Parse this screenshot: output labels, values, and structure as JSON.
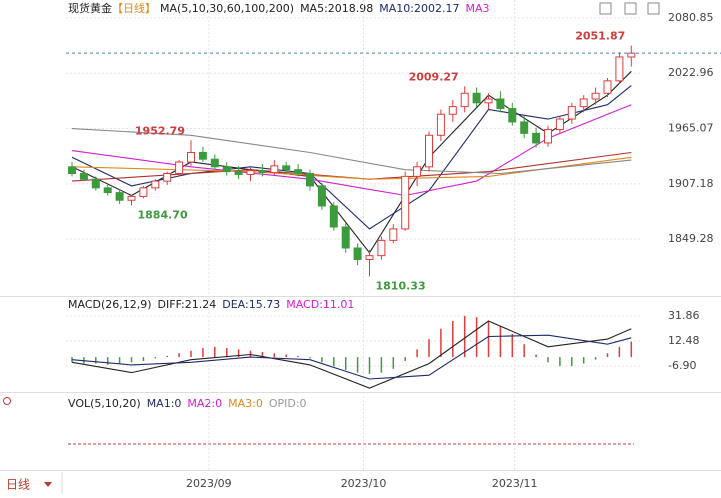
{
  "chart_data": {
    "type": "candlestick",
    "title": "现货黄金",
    "subtitle": "【日线】",
    "legend": [
      {
        "text": "MA(5,10,30,60,100,200)",
        "color": "#222222"
      },
      {
        "text": "MA5:2018.98",
        "color": "#222222"
      },
      {
        "text": "MA10:2002.17",
        "color": "#1f2a6b"
      },
      {
        "text": "MA3",
        "color": "#d21ed2"
      }
    ],
    "ylim": [
      1790.8,
      2094.4
    ],
    "yticks": [
      2080.85,
      2022.96,
      1965.07,
      1907.18,
      1849.28
    ],
    "up_color": "#e03c3c",
    "down_color": "#3d9b3d",
    "candles": [
      [
        1925,
        1930,
        1915,
        1918
      ],
      [
        1918,
        1922,
        1910,
        1912
      ],
      [
        1912,
        1915,
        1900,
        1903
      ],
      [
        1903,
        1908,
        1895,
        1898
      ],
      [
        1898,
        1902,
        1886,
        1890
      ],
      [
        1890,
        1896,
        1884.7,
        1894
      ],
      [
        1894,
        1905,
        1892,
        1903
      ],
      [
        1903,
        1912,
        1900,
        1910
      ],
      [
        1910,
        1920,
        1906,
        1918
      ],
      [
        1918,
        1932,
        1915,
        1930
      ],
      [
        1930,
        1952.79,
        1926,
        1940
      ],
      [
        1940,
        1946,
        1930,
        1933
      ],
      [
        1933,
        1938,
        1922,
        1925
      ],
      [
        1925,
        1930,
        1916,
        1920
      ],
      [
        1920,
        1926,
        1912,
        1917
      ],
      [
        1917,
        1924,
        1910,
        1921
      ],
      [
        1921,
        1928,
        1915,
        1919
      ],
      [
        1919,
        1932,
        1916,
        1926
      ],
      [
        1926,
        1930,
        1918,
        1922
      ],
      [
        1922,
        1928,
        1915,
        1918
      ],
      [
        1918,
        1922,
        1900,
        1905
      ],
      [
        1905,
        1908,
        1880,
        1884
      ],
      [
        1884,
        1888,
        1858,
        1862
      ],
      [
        1862,
        1866,
        1835,
        1840
      ],
      [
        1840,
        1845,
        1822,
        1828
      ],
      [
        1828,
        1838,
        1810.33,
        1832
      ],
      [
        1832,
        1852,
        1828,
        1848
      ],
      [
        1848,
        1865,
        1845,
        1860
      ],
      [
        1860,
        1920,
        1858,
        1915
      ],
      [
        1915,
        1930,
        1905,
        1925
      ],
      [
        1925,
        1962,
        1920,
        1958
      ],
      [
        1958,
        1985,
        1952,
        1980
      ],
      [
        1980,
        1995,
        1972,
        1988
      ],
      [
        1988,
        2009.27,
        1982,
        2002
      ],
      [
        2002,
        2008,
        1988,
        1992
      ],
      [
        1992,
        2002,
        1985,
        1996
      ],
      [
        1996,
        2004,
        1982,
        1986
      ],
      [
        1986,
        1992,
        1968,
        1972
      ],
      [
        1972,
        1978,
        1955,
        1960
      ],
      [
        1960,
        1966,
        1945,
        1950
      ],
      [
        1950,
        1968,
        1946,
        1964
      ],
      [
        1964,
        1978,
        1960,
        1975
      ],
      [
        1975,
        1992,
        1970,
        1988
      ],
      [
        1988,
        2000,
        1982,
        1996
      ],
      [
        1996,
        2008,
        1990,
        2002
      ],
      [
        2002,
        2018,
        1998,
        2015
      ],
      [
        2015,
        2045,
        2012,
        2040
      ],
      [
        2040,
        2051.87,
        2030,
        2044
      ]
    ],
    "ma_series": [
      {
        "color": "#222222",
        "x": [
          0,
          5,
          10,
          15,
          20,
          25,
          30,
          35,
          40,
          45,
          47
        ],
        "values": [
          1925,
          1895,
          1930,
          1922,
          1915,
          1835,
          1935,
          2000,
          1960,
          2000,
          2025
        ]
      },
      {
        "color": "#1f2a6b",
        "x": [
          0,
          5,
          10,
          15,
          20,
          25,
          30,
          35,
          40,
          45,
          47
        ],
        "values": [
          1935,
          1905,
          1918,
          1925,
          1918,
          1860,
          1900,
          1985,
          1975,
          1990,
          2010
        ]
      },
      {
        "color": "#d21ed2",
        "x": [
          0,
          10,
          20,
          28,
          34,
          40,
          47
        ],
        "values": [
          1942,
          1925,
          1912,
          1895,
          1910,
          1955,
          1990
        ]
      },
      {
        "color": "#b03030",
        "x": [
          0,
          15,
          25,
          35,
          47
        ],
        "values": [
          1910,
          1922,
          1912,
          1920,
          1940
        ]
      },
      {
        "color": "#e08a1e",
        "x": [
          0,
          15,
          25,
          35,
          47
        ],
        "values": [
          1925,
          1920,
          1912,
          1915,
          1935
        ]
      },
      {
        "color": "#888888",
        "x": [
          0,
          10,
          20,
          28,
          36,
          47
        ],
        "values": [
          1965,
          1958,
          1940,
          1922,
          1918,
          1932
        ]
      }
    ],
    "annotations": [
      {
        "label": "2051.87",
        "value": 2051.87,
        "color": "#d23c3c"
      },
      {
        "label": "2009.27",
        "value": 2009.27,
        "color": "#d23c3c"
      },
      {
        "label": "1952.79",
        "value": 1952.79,
        "color": "#d23c3c"
      },
      {
        "label": "1884.70",
        "value": 1884.7,
        "color": "#3d9b3d"
      },
      {
        "label": "1810.33",
        "value": 1810.33,
        "color": "#3d9b3d"
      }
    ],
    "xticks": [
      {
        "value": 11.5,
        "label": "2023/09"
      },
      {
        "value": 24.5,
        "label": "2023/10"
      },
      {
        "value": 37.2,
        "label": "2023/11"
      }
    ],
    "macd": {
      "legend": [
        {
          "text": "MACD(26,12,9)",
          "color": "#222222"
        },
        {
          "text": "DIFF:21.24",
          "color": "#222222"
        },
        {
          "text": "DEA:15.73",
          "color": "#1f2a6b"
        },
        {
          "text": "MACD:11.01",
          "color": "#d21ed2"
        }
      ],
      "ylim": [
        -25.5,
        44.3
      ],
      "yticks": [
        31.86,
        12.48,
        {
          "value": -6.9,
          "label": "-6.90"
        }
      ],
      "hist": [
        -4,
        -5,
        -5,
        -6,
        -5,
        -4,
        -3,
        -1,
        1,
        3,
        5,
        7,
        8,
        7,
        6,
        5,
        4,
        3,
        2,
        1,
        -1,
        -4,
        -7,
        -10,
        -12,
        -13,
        -12,
        -9,
        -3,
        6,
        14,
        22,
        28,
        32,
        31,
        28,
        24,
        18,
        10,
        2,
        -4,
        -7,
        -7,
        -5,
        -2,
        3,
        8,
        12
      ],
      "diff": {
        "color": "#222222",
        "x": [
          0,
          5,
          10,
          15,
          20,
          25,
          30,
          35,
          40,
          45,
          47
        ],
        "values": [
          -4,
          -12,
          -2,
          2,
          -6,
          -24,
          -5,
          28,
          8,
          14,
          22
        ]
      },
      "dea": {
        "color": "#1f2a6b",
        "x": [
          0,
          5,
          10,
          15,
          20,
          25,
          30,
          35,
          40,
          45,
          47
        ],
        "values": [
          -2,
          -6,
          -4,
          0,
          -2,
          -17,
          -14,
          16,
          17,
          10,
          15
        ]
      }
    },
    "vol": {
      "legend": [
        {
          "text": "VOL(5,10,20)",
          "color": "#222222"
        },
        {
          "text": "MA1:0",
          "color": "#1f2a6b"
        },
        {
          "text": "MA2:0",
          "color": "#d21ed2"
        },
        {
          "text": "MA3:0",
          "color": "#e08a1e"
        },
        {
          "text": "OPID:0",
          "color": "#999999"
        }
      ]
    },
    "period_button": "日线"
  }
}
